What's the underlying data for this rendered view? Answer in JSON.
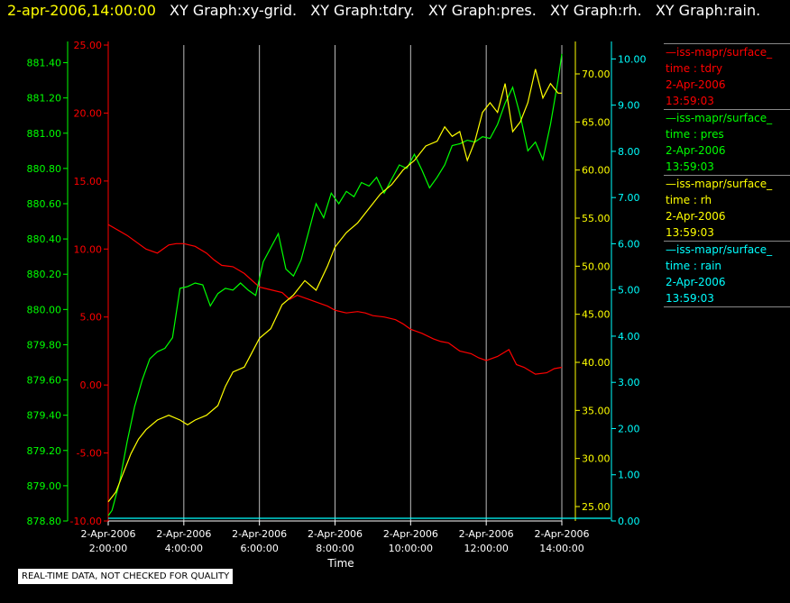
{
  "header": {
    "timestamp": "2-apr-2006,14:00:00",
    "titles": [
      "XY Graph:xy-grid.",
      "XY Graph:tdry.",
      "XY Graph:pres.",
      "XY Graph:rh.",
      "XY Graph:rain."
    ]
  },
  "notice": "REAL-TIME DATA, NOT CHECKED FOR QUALITY",
  "colors": {
    "tdry": "#ff0000",
    "pres": "#00ff00",
    "rh": "#ffff00",
    "rain": "#00ffff",
    "grid": "#bbbbbb"
  },
  "legend": [
    {
      "source": "—iss-mapr/surface_",
      "field": "time : tdry",
      "date": "2-Apr-2006",
      "time": "13:59:03",
      "color": "#ff0000"
    },
    {
      "source": "—iss-mapr/surface_",
      "field": "time : pres",
      "date": "2-Apr-2006",
      "time": "13:59:03",
      "color": "#00ff00"
    },
    {
      "source": "—iss-mapr/surface_",
      "field": "time : rh",
      "date": "2-Apr-2006",
      "time": "13:59:03",
      "color": "#ffff00"
    },
    {
      "source": "—iss-mapr/surface_",
      "field": "time : rain",
      "date": "2-Apr-2006",
      "time": "13:59:03",
      "color": "#00ffff"
    }
  ],
  "chart_data": {
    "type": "line",
    "xlabel": "Time",
    "xlim": [
      2,
      14
    ],
    "x_ticks": [
      {
        "x": 2,
        "date": "2-Apr-2006",
        "time": "2:00:00"
      },
      {
        "x": 4,
        "date": "2-Apr-2006",
        "time": "4:00:00"
      },
      {
        "x": 6,
        "date": "2-Apr-2006",
        "time": "6:00:00"
      },
      {
        "x": 8,
        "date": "2-Apr-2006",
        "time": "8:00:00"
      },
      {
        "x": 10,
        "date": "2-Apr-2006",
        "time": "10:00:00"
      },
      {
        "x": 12,
        "date": "2-Apr-2006",
        "time": "12:00:00"
      },
      {
        "x": 14,
        "date": "2-Apr-2006",
        "time": "14:00:00"
      }
    ],
    "grid": true,
    "axes": {
      "pres": {
        "range": [
          878.8,
          881.5
        ],
        "ticks": [
          "878.80",
          "879.00",
          "879.20",
          "879.40",
          "879.60",
          "879.80",
          "880.00",
          "880.20",
          "880.40",
          "880.60",
          "880.80",
          "881.00",
          "881.20",
          "881.40"
        ]
      },
      "tdry": {
        "range": [
          -10,
          25
        ],
        "ticks": [
          "-10.00",
          "-5.00",
          "0.00",
          "5.00",
          "10.00",
          "15.00",
          "20.00",
          "25.00"
        ]
      },
      "rh": {
        "range": [
          23.5,
          73
        ],
        "ticks": [
          "25.00",
          "30.00",
          "35.00",
          "40.00",
          "45.00",
          "50.00",
          "55.00",
          "60.00",
          "65.00",
          "70.00"
        ]
      },
      "rain": {
        "range": [
          0,
          10.3
        ],
        "ticks": [
          "0.00",
          "1.00",
          "2.00",
          "3.00",
          "4.00",
          "5.00",
          "6.00",
          "7.00",
          "8.00",
          "9.00",
          "10.00"
        ]
      }
    },
    "series": [
      {
        "name": "tdry",
        "axis": "tdry",
        "x": [
          2.0,
          2.5,
          3.0,
          3.3,
          3.6,
          3.8,
          4.0,
          4.3,
          4.6,
          4.8,
          5.0,
          5.3,
          5.6,
          5.8,
          6.0,
          6.3,
          6.6,
          6.8,
          7.0,
          7.3,
          7.6,
          7.8,
          8.0,
          8.3,
          8.6,
          8.8,
          9.0,
          9.3,
          9.6,
          9.8,
          10.0,
          10.3,
          10.6,
          10.8,
          11.0,
          11.3,
          11.6,
          11.8,
          12.0,
          12.3,
          12.6,
          12.8,
          13.0,
          13.3,
          13.6,
          13.8,
          14.0
        ],
        "y": [
          11.8,
          11.0,
          10.0,
          9.7,
          10.3,
          10.4,
          10.4,
          10.2,
          9.7,
          9.2,
          8.8,
          8.7,
          8.2,
          7.7,
          7.2,
          7.0,
          6.8,
          6.3,
          6.6,
          6.3,
          6.0,
          5.8,
          5.5,
          5.3,
          5.4,
          5.3,
          5.1,
          5.0,
          4.8,
          4.5,
          4.1,
          3.8,
          3.4,
          3.2,
          3.1,
          2.5,
          2.3,
          2.0,
          1.8,
          2.1,
          2.6,
          1.5,
          1.3,
          0.8,
          0.9,
          1.2,
          1.3
        ]
      },
      {
        "name": "pres",
        "axis": "pres",
        "x": [
          2.0,
          2.1,
          2.3,
          2.5,
          2.7,
          2.9,
          3.1,
          3.3,
          3.5,
          3.7,
          3.9,
          4.1,
          4.3,
          4.5,
          4.7,
          4.9,
          5.1,
          5.3,
          5.5,
          5.7,
          5.9,
          6.1,
          6.3,
          6.5,
          6.7,
          6.9,
          7.1,
          7.3,
          7.5,
          7.7,
          7.9,
          8.1,
          8.3,
          8.5,
          8.7,
          8.9,
          9.1,
          9.3,
          9.5,
          9.7,
          9.9,
          10.1,
          10.3,
          10.5,
          10.7,
          10.9,
          11.1,
          11.3,
          11.5,
          11.7,
          11.9,
          12.1,
          12.3,
          12.5,
          12.7,
          12.9,
          13.1,
          13.3,
          13.5,
          13.7,
          13.9,
          14.0
        ],
        "y": [
          878.83,
          878.86,
          879.02,
          879.25,
          879.45,
          879.6,
          879.72,
          879.76,
          879.78,
          879.84,
          880.12,
          880.13,
          880.15,
          880.14,
          880.02,
          880.09,
          880.12,
          880.11,
          880.15,
          880.11,
          880.08,
          880.27,
          880.35,
          880.43,
          880.23,
          880.19,
          880.28,
          880.44,
          880.6,
          880.52,
          880.66,
          880.6,
          880.67,
          880.64,
          880.72,
          880.7,
          880.75,
          880.66,
          880.74,
          880.82,
          880.8,
          880.88,
          880.79,
          880.69,
          880.75,
          880.82,
          880.93,
          880.94,
          880.96,
          880.95,
          880.98,
          880.97,
          881.05,
          881.17,
          881.26,
          881.1,
          880.9,
          880.95,
          880.85,
          881.05,
          881.3,
          881.45
        ]
      },
      {
        "name": "rh",
        "axis": "rh",
        "x": [
          2.0,
          2.2,
          2.4,
          2.6,
          2.8,
          3.0,
          3.3,
          3.6,
          3.9,
          4.1,
          4.3,
          4.6,
          4.9,
          5.1,
          5.3,
          5.6,
          5.8,
          6.0,
          6.3,
          6.6,
          6.9,
          7.2,
          7.5,
          7.8,
          8.0,
          8.3,
          8.6,
          8.9,
          9.2,
          9.5,
          9.8,
          10.1,
          10.4,
          10.7,
          10.9,
          11.1,
          11.3,
          11.5,
          11.7,
          11.9,
          12.1,
          12.3,
          12.5,
          12.7,
          12.9,
          13.1,
          13.3,
          13.5,
          13.7,
          13.9,
          14.0
        ],
        "y": [
          25.5,
          26.5,
          28.5,
          30.5,
          32.0,
          33.0,
          34.0,
          34.5,
          34.0,
          33.5,
          34.0,
          34.5,
          35.5,
          37.5,
          39.0,
          39.5,
          41.0,
          42.5,
          43.5,
          46.0,
          47.0,
          48.5,
          47.5,
          50.0,
          52.0,
          53.5,
          54.5,
          56.0,
          57.5,
          58.5,
          60.0,
          61.0,
          62.5,
          63.0,
          64.5,
          63.5,
          64.0,
          61.0,
          63.0,
          66.0,
          67.0,
          66.0,
          69.0,
          64.0,
          65.0,
          67.0,
          70.5,
          67.5,
          69.0,
          68.0,
          68.0
        ]
      },
      {
        "name": "rain",
        "axis": "rain",
        "x": [
          2,
          14
        ],
        "y": [
          0.0,
          0.0
        ]
      }
    ]
  }
}
